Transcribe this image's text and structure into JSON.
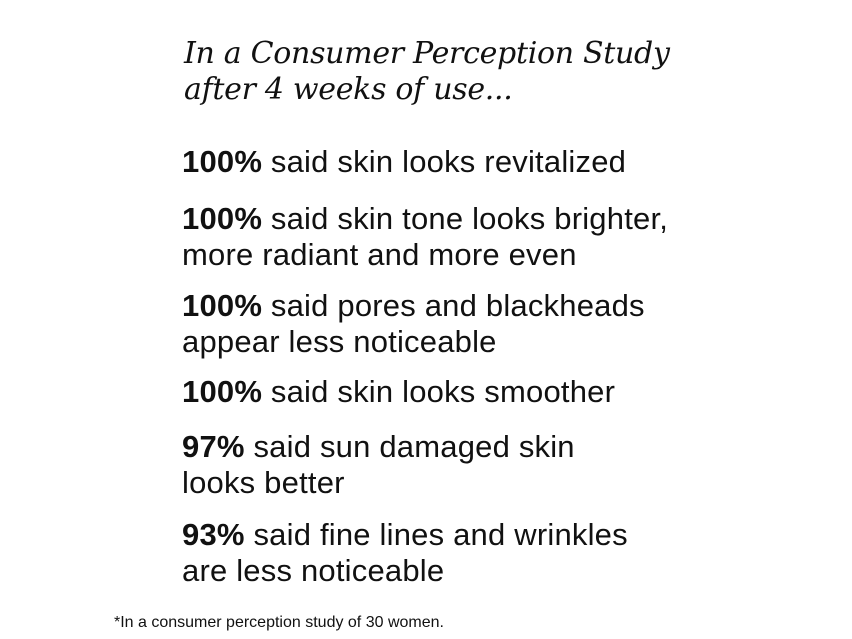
{
  "heading": {
    "line1": "In a Consumer Perception Study",
    "line2": "after 4 weeks of use..."
  },
  "stats": [
    {
      "percent": "100%",
      "line1": " said skin looks revitalized",
      "line2": ""
    },
    {
      "percent": "100%",
      "line1": " said skin tone looks brighter,",
      "line2": "more radiant and more even"
    },
    {
      "percent": "100%",
      "line1": " said pores and blackheads",
      "line2": "appear less noticeable"
    },
    {
      "percent": "100%",
      "line1": " said skin looks smoother",
      "line2": ""
    },
    {
      "percent": "97%",
      "line1": " said sun damaged skin",
      "line2": "looks better"
    },
    {
      "percent": "93%",
      "line1": " said fine lines and wrinkles",
      "line2": "are less noticeable"
    }
  ],
  "footnote": "*In a consumer perception study of 30 women."
}
